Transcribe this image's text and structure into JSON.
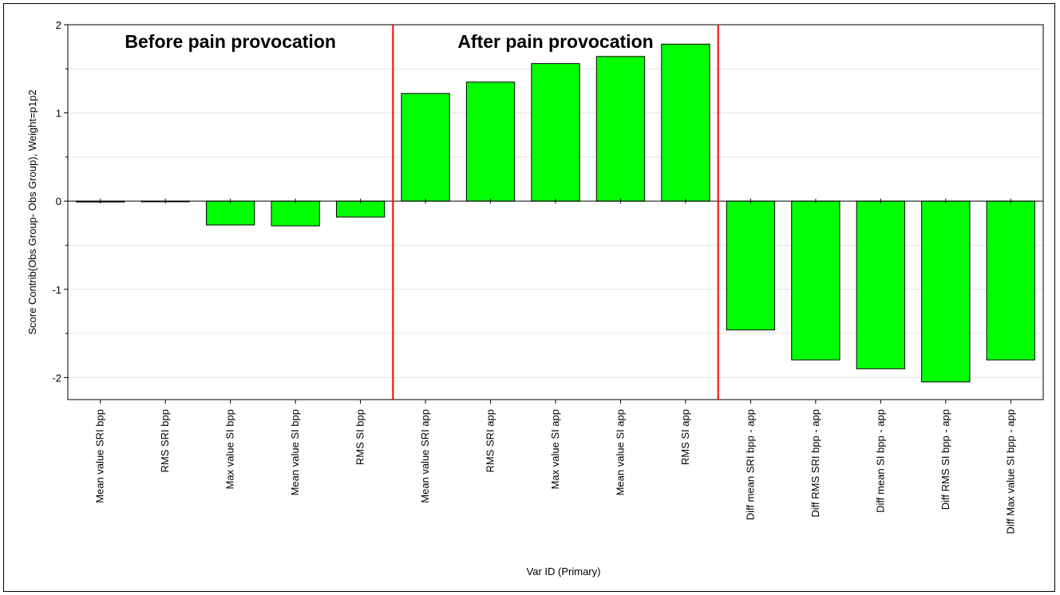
{
  "chart_data": {
    "type": "bar",
    "ylabel": "Score Contrib(Obs Group- Obs Group), Weight=p1p2",
    "xlabel": "Var ID (Primary)",
    "ylim": [
      -2.25,
      2
    ],
    "yticks": [
      -2,
      -1,
      0,
      1,
      2
    ],
    "grid": true,
    "categories": [
      "Mean value SRI bpp",
      "RMS SRI bpp",
      "Max value SI bpp",
      "Mean value SI bpp",
      "RMS SI bpp",
      "Mean value SRI app",
      "RMS SRI app",
      "Max value SI app",
      "Mean value SI app",
      "RMS SI app",
      "Diff mean SRI bpp - app",
      "Diff RMS SRI bpp - app",
      "Diff mean SI bpp - app",
      "Diff RMS SI bpp - app",
      "Diff Max value SI bpp - app"
    ],
    "values": [
      -0.01,
      0.0,
      -0.27,
      -0.28,
      -0.18,
      1.22,
      1.35,
      1.56,
      1.64,
      1.78,
      -1.46,
      -1.8,
      -1.9,
      -2.05,
      -1.8
    ],
    "bar_color": "#00ff00",
    "separator_color": "#ff0000",
    "separators_after_index": [
      4,
      9
    ],
    "annotations": [
      {
        "text": "Before pain provocation",
        "group": [
          0,
          4
        ]
      },
      {
        "text": "After pain provocation",
        "group": [
          5,
          9
        ]
      }
    ]
  }
}
